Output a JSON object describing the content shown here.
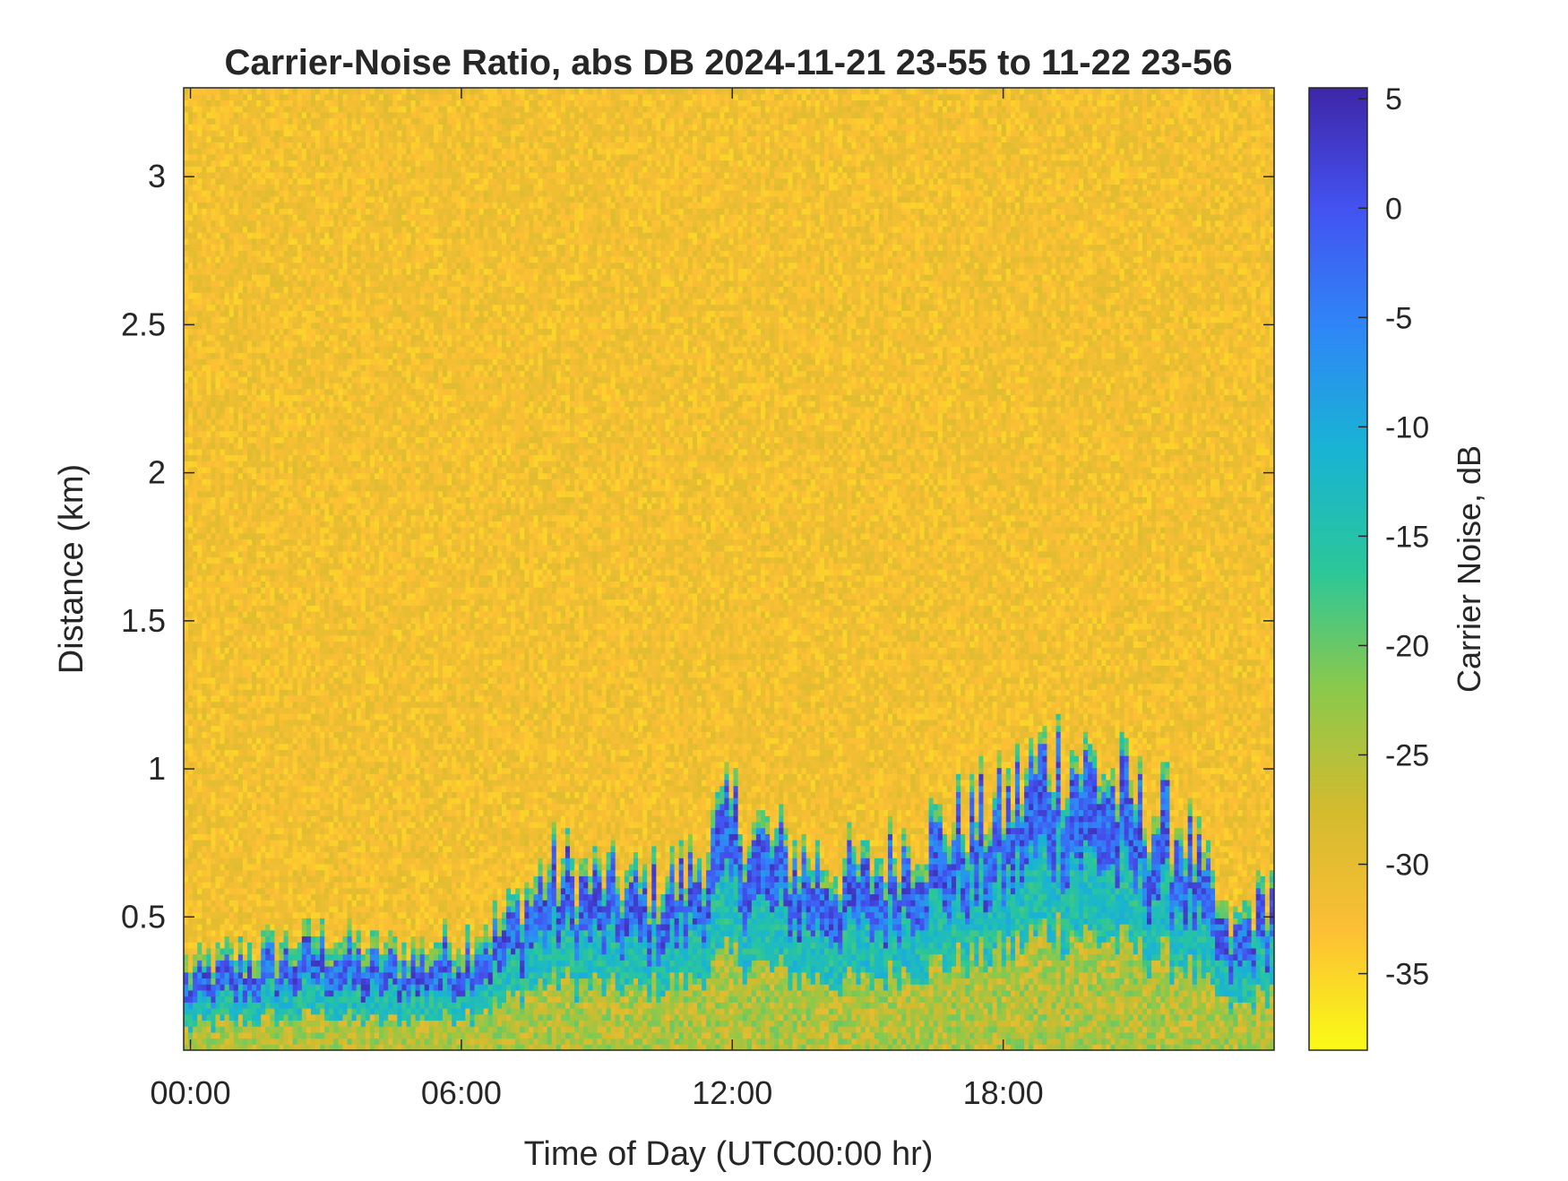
{
  "chart_data": {
    "type": "heatmap",
    "title": "Carrier-Noise Ratio, abs DB 2024-11-21 23-55 to 11-22 23-56",
    "xlabel": "Time of Day (UTC00:00 hr)",
    "ylabel": "Distance (km)",
    "x_ticks": [
      "00:00",
      "06:00",
      "12:00",
      "18:00"
    ],
    "x_tick_values_hr": [
      0,
      6,
      12,
      18
    ],
    "xlim_hr": [
      -0.15,
      24.0
    ],
    "y_ticks": [
      "0.5",
      "1",
      "1.5",
      "2",
      "2.5",
      "3"
    ],
    "y_tick_values_km": [
      0.5,
      1,
      1.5,
      2,
      2.5,
      3
    ],
    "ylim_km": [
      0.05,
      3.3
    ],
    "colorbar": {
      "label": "Carrier Noise, dB",
      "ticks": [
        "5",
        "0",
        "-5",
        "-10",
        "-15",
        "-20",
        "-25",
        "-30",
        "-35"
      ],
      "tick_values": [
        5,
        0,
        -5,
        -10,
        -15,
        -20,
        -25,
        -30,
        -35
      ],
      "range": [
        -38.5,
        5.5
      ],
      "colormap": [
        "#3e26a8",
        "#4352f0",
        "#2e87f6",
        "#19b3d4",
        "#2ac79a",
        "#8bc94b",
        "#d3bb2e",
        "#fcbf35",
        "#f9fb15"
      ]
    },
    "background_level_db": -32,
    "layer_top_profile": {
      "time_hr": [
        0,
        1,
        2,
        3,
        4,
        5,
        6,
        7,
        8,
        9,
        10,
        11,
        12,
        13,
        14,
        15,
        16,
        17,
        18,
        19,
        20,
        21,
        22,
        23,
        24
      ],
      "top_km": [
        0.28,
        0.32,
        0.35,
        0.38,
        0.33,
        0.34,
        0.37,
        0.45,
        0.62,
        0.58,
        0.55,
        0.6,
        0.8,
        0.68,
        0.62,
        0.6,
        0.72,
        0.76,
        0.82,
        1.0,
        0.95,
        0.82,
        0.75,
        0.4,
        0.55
      ]
    },
    "strongest_echo_db": 4,
    "weakest_echo_db": -28
  }
}
